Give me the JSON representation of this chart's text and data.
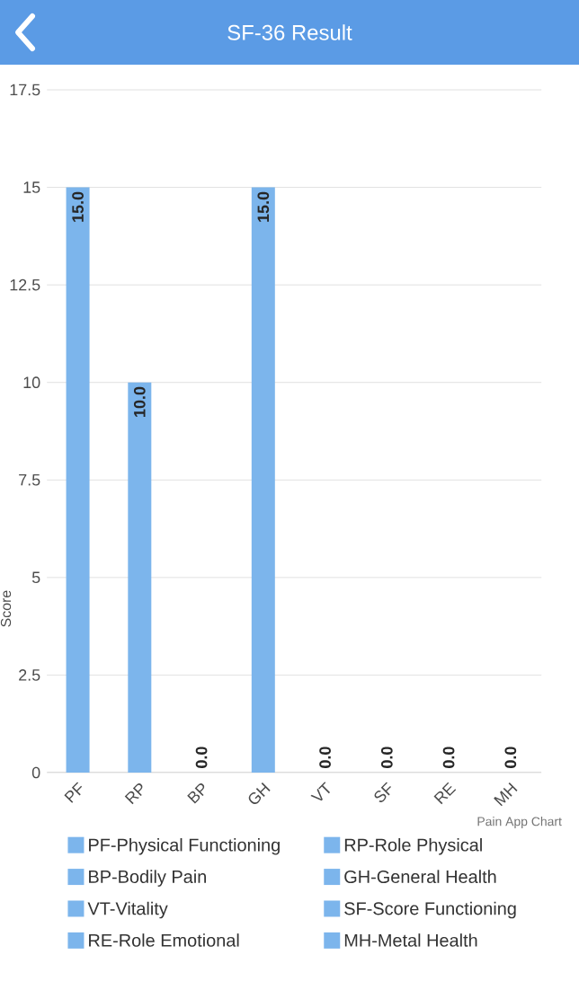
{
  "chart_data": {
    "type": "bar",
    "title": "SF-36 Result",
    "ylabel": "Score",
    "categories": [
      "PF",
      "RP",
      "BP",
      "GH",
      "VT",
      "SF",
      "RE",
      "MH"
    ],
    "series": [
      {
        "name": "PF-Physical Functioning",
        "color": "#7cb5ec",
        "values": [
          15,
          null,
          null,
          null,
          null,
          null,
          null,
          null
        ],
        "value_labels": [
          "15.0",
          null,
          null,
          null,
          null,
          null,
          null,
          null
        ]
      },
      {
        "name": "RP-Role Physical",
        "color": "#7cb5ec",
        "values": [
          null,
          10,
          null,
          null,
          null,
          null,
          null,
          null
        ],
        "value_labels": [
          null,
          "10.0",
          null,
          null,
          null,
          null,
          null,
          null
        ]
      },
      {
        "name": "BP-Bodily Pain",
        "color": "#7cb5ec",
        "values": [
          null,
          null,
          0,
          null,
          null,
          null,
          null,
          null
        ],
        "value_labels": [
          null,
          null,
          "0.0",
          null,
          null,
          null,
          null,
          null
        ]
      },
      {
        "name": "GH-General Health",
        "color": "#7cb5ec",
        "values": [
          null,
          null,
          null,
          15,
          null,
          null,
          null,
          null
        ],
        "value_labels": [
          null,
          null,
          null,
          "15.0",
          null,
          null,
          null,
          null
        ]
      },
      {
        "name": "VT-Vitality",
        "color": "#7cb5ec",
        "values": [
          null,
          null,
          null,
          null,
          0,
          null,
          null,
          null
        ],
        "value_labels": [
          null,
          null,
          null,
          null,
          "0.0",
          null,
          null,
          null
        ]
      },
      {
        "name": "SF-Score Functioning",
        "color": "#7cb5ec",
        "values": [
          null,
          null,
          null,
          null,
          null,
          0,
          null,
          null
        ],
        "value_labels": [
          null,
          null,
          null,
          null,
          null,
          "0.0",
          null,
          null
        ]
      },
      {
        "name": "RE-Role Emotional",
        "color": "#7cb5ec",
        "values": [
          null,
          null,
          null,
          null,
          null,
          null,
          0,
          null
        ],
        "value_labels": [
          null,
          null,
          null,
          null,
          null,
          null,
          "0.0",
          null
        ]
      },
      {
        "name": "MH-Metal Health",
        "color": "#7cb5ec",
        "values": [
          null,
          null,
          null,
          null,
          null,
          null,
          null,
          0
        ],
        "value_labels": [
          null,
          null,
          null,
          null,
          null,
          null,
          null,
          "0.0"
        ]
      }
    ],
    "ylim": [
      0,
      17.5
    ],
    "yticks": [
      0,
      2.5,
      5,
      7.5,
      10,
      12.5,
      15,
      17.5
    ],
    "grid": "y",
    "legend": "bottom",
    "annotations": [
      "Pain App Chart"
    ]
  }
}
